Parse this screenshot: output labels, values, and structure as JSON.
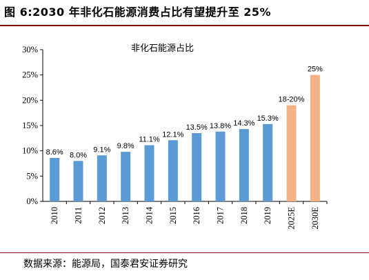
{
  "header": {
    "title": "图 6:2030 年非化石能源消费占比有望提升至 25%"
  },
  "footer": {
    "source": "数据来源：能源局，国泰君安证券研究"
  },
  "chart_data": {
    "type": "bar",
    "title": "非化石能源占比",
    "categories": [
      "2010",
      "2011",
      "2012",
      "2013",
      "2014",
      "2015",
      "2016",
      "2017",
      "2018",
      "2019",
      "2025E",
      "2030E"
    ],
    "values": [
      8.6,
      8.0,
      9.1,
      9.8,
      11.1,
      12.1,
      13.5,
      13.8,
      14.3,
      15.3,
      19,
      25
    ],
    "data_labels": [
      "8.6%",
      "8.0%",
      "9.1%",
      "9.8%",
      "11.1%",
      "12.1%",
      "13.5%",
      "13.8%",
      "14.3%",
      "15.3%",
      "18-20%",
      "25%"
    ],
    "yticks": [
      "0%",
      "5%",
      "10%",
      "15%",
      "20%",
      "25%",
      "30%"
    ],
    "ylim": [
      0,
      30
    ],
    "colors": {
      "actual": "#5b9bd5",
      "forecast": "#f4b183"
    },
    "forecast_start_index": 10,
    "grid": false,
    "xlabel": "",
    "ylabel": ""
  }
}
